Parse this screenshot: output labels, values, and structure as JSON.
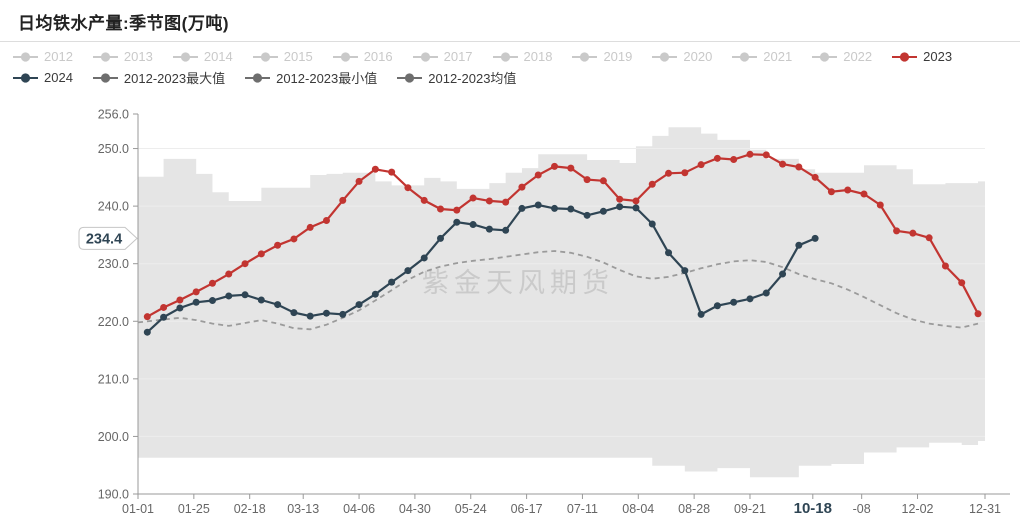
{
  "title": "日均铁水产量:季节图(万吨)",
  "watermark": "紫金天风期货",
  "colors": {
    "red": "#c23531",
    "dark_blue": "#2f4554",
    "legend_gray": "#6e6e6e",
    "inactive": "#c9c9c9",
    "band": "#e5e5e5",
    "mean": "#9b9b9b",
    "axis": "#999999",
    "tick_text": "#666666",
    "grid": "#ededed",
    "watermark_gray": "#b5b5b5"
  },
  "legend": {
    "rows": [
      [
        {
          "label": "2012",
          "color": "#c9c9c9",
          "state": "inactive"
        },
        {
          "label": "2013",
          "color": "#c9c9c9",
          "state": "inactive"
        },
        {
          "label": "2014",
          "color": "#c9c9c9",
          "state": "inactive"
        },
        {
          "label": "2015",
          "color": "#c9c9c9",
          "state": "inactive"
        },
        {
          "label": "2016",
          "color": "#c9c9c9",
          "state": "inactive"
        },
        {
          "label": "2017",
          "color": "#c9c9c9",
          "state": "inactive"
        },
        {
          "label": "2018",
          "color": "#c9c9c9",
          "state": "inactive"
        },
        {
          "label": "2019",
          "color": "#c9c9c9",
          "state": "inactive"
        },
        {
          "label": "2020",
          "color": "#c9c9c9",
          "state": "inactive"
        },
        {
          "label": "2021",
          "color": "#c9c9c9",
          "state": "inactive"
        },
        {
          "label": "2022",
          "color": "#c9c9c9",
          "state": "inactive"
        },
        {
          "label": "2023",
          "color": "#c23531",
          "state": "active"
        }
      ],
      [
        {
          "label": "2024",
          "color": "#2f4554",
          "state": "active"
        },
        {
          "label": "2012-2023最大值",
          "color": "#6e6e6e",
          "state": "active"
        },
        {
          "label": "2012-2023最小值",
          "color": "#6e6e6e",
          "state": "active"
        },
        {
          "label": "2012-2023均值",
          "color": "#6e6e6e",
          "state": "active"
        }
      ]
    ]
  },
  "chart_data": {
    "type": "line",
    "title": "日均铁水产量:季节图(万吨)",
    "x_axis": {
      "unit": "date MM-DD (day of year)",
      "range_days": [
        1,
        365
      ],
      "ticks": [
        {
          "day": 1,
          "label": "01-01"
        },
        {
          "day": 25,
          "label": "01-25"
        },
        {
          "day": 49,
          "label": "02-18"
        },
        {
          "day": 72,
          "label": "03-13"
        },
        {
          "day": 96,
          "label": "04-06"
        },
        {
          "day": 120,
          "label": "04-30"
        },
        {
          "day": 144,
          "label": "05-24"
        },
        {
          "day": 168,
          "label": "06-17"
        },
        {
          "day": 192,
          "label": "07-11"
        },
        {
          "day": 216,
          "label": "08-04"
        },
        {
          "day": 240,
          "label": "08-28"
        },
        {
          "day": 264,
          "label": "09-21"
        },
        {
          "day": 291,
          "label": "10-18",
          "highlight": true
        },
        {
          "day": 312,
          "label": "-08"
        },
        {
          "day": 336,
          "label": "12-02"
        },
        {
          "day": 365,
          "label": "12-31"
        }
      ]
    },
    "y_axis": {
      "range": [
        190,
        256
      ],
      "ticks": [
        {
          "value": 190,
          "label": "190.0"
        },
        {
          "value": 200,
          "label": "200.0"
        },
        {
          "value": 210,
          "label": "210.0"
        },
        {
          "value": 220,
          "label": "220.0"
        },
        {
          "value": 230,
          "label": "230.0"
        },
        {
          "value": 240,
          "label": "240.0"
        },
        {
          "value": 250,
          "label": "250.0"
        },
        {
          "value": 256,
          "label": "256.0"
        }
      ]
    },
    "current_value_label": {
      "text": "234.4",
      "value": 234.4,
      "series": "2024"
    },
    "band": {
      "name": "2012-2023最大值/最小值区间",
      "color": "#e5e5e5",
      "days": [
        1,
        12,
        19,
        26,
        33,
        40,
        47,
        54,
        61,
        68,
        75,
        82,
        89,
        96,
        103,
        110,
        117,
        124,
        131,
        138,
        145,
        152,
        159,
        166,
        173,
        180,
        187,
        194,
        201,
        208,
        215,
        222,
        229,
        236,
        243,
        250,
        257,
        264,
        271,
        278,
        285,
        292,
        299,
        306,
        313,
        320,
        327,
        334,
        341,
        348,
        355,
        362
      ],
      "max": [
        245.1,
        248.2,
        248.2,
        245.6,
        242.4,
        240.9,
        240.9,
        243.2,
        243.2,
        243.2,
        245.4,
        245.6,
        245.8,
        245.8,
        244.3,
        243.6,
        243.6,
        244.9,
        244.3,
        243.0,
        243.0,
        244.0,
        245.8,
        246.6,
        249.0,
        249.0,
        249.0,
        248.0,
        248.0,
        247.5,
        250.4,
        252.2,
        253.7,
        253.7,
        252.6,
        251.5,
        251.5,
        249.8,
        248.2,
        248.2,
        246.4,
        245.8,
        245.8,
        245.8,
        247.1,
        247.1,
        246.4,
        243.8,
        243.8,
        244.0,
        244.0,
        244.3
      ],
      "min": [
        196.3,
        196.3,
        196.3,
        196.3,
        196.3,
        196.3,
        196.3,
        196.3,
        196.3,
        196.3,
        196.3,
        196.3,
        196.3,
        196.3,
        196.3,
        196.3,
        196.3,
        196.3,
        196.3,
        196.3,
        196.3,
        196.3,
        196.3,
        196.3,
        196.3,
        196.3,
        196.3,
        196.3,
        196.3,
        196.3,
        196.3,
        194.9,
        194.9,
        193.9,
        193.9,
        194.5,
        194.5,
        192.9,
        192.9,
        192.9,
        194.9,
        194.9,
        195.2,
        195.2,
        197.2,
        197.2,
        198.1,
        198.1,
        198.9,
        198.9,
        198.5,
        199.2
      ]
    },
    "series": [
      {
        "name": "2012-2023均值",
        "style": "dashed",
        "color": "#9b9b9b",
        "days": [
          1,
          12,
          19,
          26,
          33,
          40,
          47,
          54,
          61,
          68,
          75,
          82,
          89,
          96,
          103,
          110,
          117,
          124,
          131,
          138,
          145,
          152,
          159,
          166,
          173,
          180,
          187,
          194,
          201,
          208,
          215,
          222,
          229,
          236,
          243,
          250,
          257,
          264,
          271,
          278,
          285,
          292,
          299,
          306,
          313,
          320,
          327,
          334,
          341,
          348,
          355,
          362
        ],
        "values": [
          219.8,
          220.3,
          220.6,
          220.2,
          219.6,
          219.2,
          219.7,
          220.2,
          219.6,
          218.8,
          218.6,
          219.4,
          220.6,
          221.9,
          223.6,
          225.4,
          227.2,
          228.6,
          229.5,
          230.1,
          230.5,
          230.8,
          231.2,
          231.6,
          232.0,
          232.2,
          231.9,
          231.2,
          230.2,
          228.9,
          227.8,
          227.4,
          227.7,
          228.4,
          229.2,
          229.9,
          230.4,
          230.6,
          230.3,
          229.4,
          228.2,
          227.3,
          226.6,
          225.5,
          224.2,
          222.8,
          221.4,
          220.3,
          219.6,
          219.2,
          218.9,
          219.6
        ]
      },
      {
        "name": "2023",
        "style": "solid",
        "color": "#c23531",
        "days": [
          5,
          12,
          19,
          26,
          33,
          40,
          47,
          54,
          61,
          68,
          75,
          82,
          89,
          96,
          103,
          110,
          117,
          124,
          131,
          138,
          145,
          152,
          159,
          166,
          173,
          180,
          187,
          194,
          201,
          208,
          215,
          222,
          229,
          236,
          243,
          250,
          257,
          264,
          271,
          278,
          285,
          292,
          299,
          306,
          313,
          320,
          327,
          334,
          341,
          348,
          355,
          362
        ],
        "values": [
          220.8,
          222.4,
          223.7,
          225.1,
          226.6,
          228.2,
          230.0,
          231.7,
          233.2,
          234.3,
          236.3,
          237.5,
          241.0,
          244.3,
          246.4,
          245.9,
          243.2,
          241.0,
          239.5,
          239.3,
          241.4,
          240.9,
          240.7,
          243.3,
          245.4,
          246.9,
          246.6,
          244.6,
          244.4,
          241.2,
          240.9,
          243.8,
          245.7,
          245.8,
          247.2,
          248.3,
          248.1,
          249.0,
          248.9,
          247.3,
          246.8,
          245.0,
          242.5,
          242.8,
          242.1,
          240.2,
          235.7,
          235.3,
          234.5,
          229.6,
          226.7,
          221.3
        ]
      },
      {
        "name": "2024",
        "style": "solid",
        "color": "#2f4554",
        "end_label": "234.4",
        "days": [
          5,
          12,
          19,
          26,
          33,
          40,
          47,
          54,
          61,
          68,
          75,
          82,
          89,
          96,
          103,
          110,
          117,
          124,
          131,
          138,
          145,
          152,
          159,
          166,
          173,
          180,
          187,
          194,
          201,
          208,
          215,
          222,
          229,
          236,
          243,
          250,
          257,
          264,
          271,
          278,
          285,
          292
        ],
        "values": [
          218.1,
          220.7,
          222.3,
          223.3,
          223.6,
          224.4,
          224.6,
          223.7,
          222.9,
          221.5,
          220.9,
          221.4,
          221.2,
          222.9,
          224.7,
          226.8,
          228.8,
          231.0,
          234.4,
          237.2,
          236.8,
          236.0,
          235.8,
          239.6,
          240.2,
          239.6,
          239.5,
          238.4,
          239.1,
          239.9,
          239.7,
          236.9,
          231.9,
          228.8,
          221.2,
          222.7,
          223.3,
          223.9,
          224.9,
          228.2,
          233.2,
          234.4
        ]
      }
    ]
  }
}
